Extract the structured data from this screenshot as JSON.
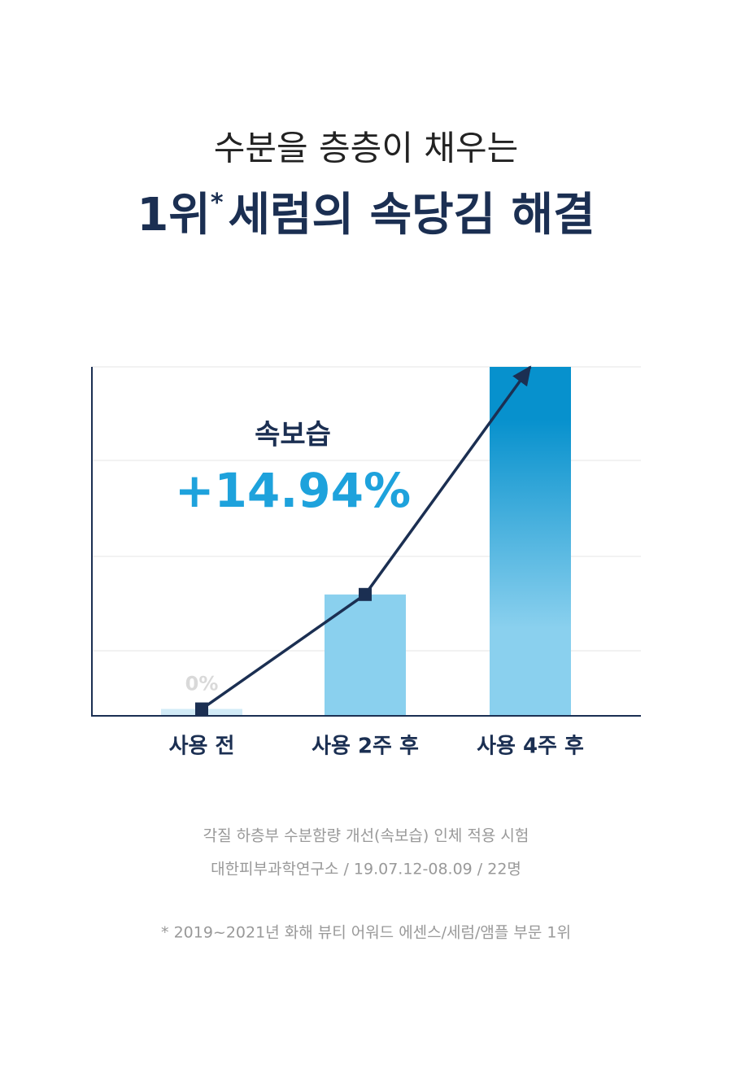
{
  "chart_data": {
    "type": "bar",
    "headline": "수분을 층층이 채우는",
    "title": "1위",
    "title_mark": "*",
    "title_rest": "세럼의 속당김 해결",
    "annotation": "속보습",
    "categories": [
      "사용 전",
      "사용 2주 후",
      "사용 4주 후"
    ],
    "values": [
      0,
      5.0,
      14.94
    ],
    "value_labels": [
      "0%",
      null,
      "+14.94%"
    ],
    "colors": [
      "#d2ebf7",
      "#8ad0ee",
      "#0791cd"
    ],
    "line_color": "#1b2f52",
    "ylim": [
      -0.3,
      14.94
    ],
    "notes": [
      "각질 하층부 수분함량 개선(속보습) 인체 적용 시험",
      "대한피부과학연구소 / 19.07.12-08.09 / 22명"
    ],
    "footnote": "* 2019~2021년 화해 뷰티 어워드 에센스/세럼/앰플 부문 1위"
  }
}
